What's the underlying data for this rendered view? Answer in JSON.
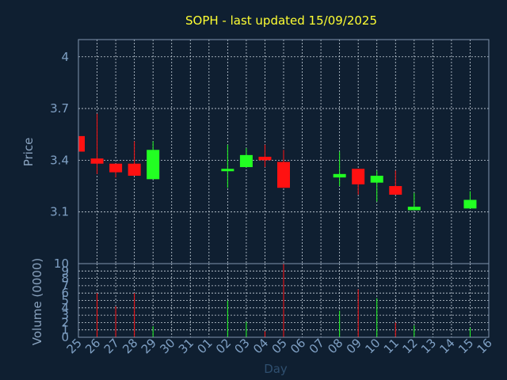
{
  "title": "SOPH - last updated 15/09/2025",
  "colors": {
    "background": "#0f1f31",
    "up": "#22ff22",
    "down": "#ff1111",
    "title": "#ffff33",
    "axis_text": "#7fa0c4"
  },
  "chart_data": [
    {
      "type": "candlestick",
      "ylabel": "Price",
      "ylim": [
        2.8,
        4.1
      ],
      "yticks": [
        4,
        3.7,
        3.4,
        3.1
      ],
      "grid": true,
      "categories": [
        "25",
        "26",
        "27",
        "28",
        "29",
        "30",
        "31",
        "01",
        "02",
        "03",
        "04",
        "05",
        "06",
        "07",
        "08",
        "09",
        "10",
        "11",
        "12",
        "13",
        "14",
        "15",
        "16"
      ],
      "candles": [
        {
          "x": "25",
          "open": 3.54,
          "close": 3.45,
          "high": 3.54,
          "low": 3.45
        },
        {
          "x": "26",
          "open": 3.41,
          "close": 3.38,
          "high": 3.67,
          "low": 3.32
        },
        {
          "x": "27",
          "open": 3.38,
          "close": 3.33,
          "high": 3.38,
          "low": 3.3
        },
        {
          "x": "28",
          "open": 3.38,
          "close": 3.31,
          "high": 3.51,
          "low": 3.31
        },
        {
          "x": "29",
          "open": 3.29,
          "close": 3.46,
          "high": 3.51,
          "low": 3.29
        },
        {
          "x": "02",
          "open": 3.34,
          "close": 3.35,
          "high": 3.49,
          "low": 3.24
        },
        {
          "x": "03",
          "open": 3.36,
          "close": 3.43,
          "high": 3.47,
          "low": 3.36
        },
        {
          "x": "04",
          "open": 3.42,
          "close": 3.4,
          "high": 3.49,
          "low": 3.36
        },
        {
          "x": "05",
          "open": 3.39,
          "close": 3.24,
          "high": 3.46,
          "low": 3.24
        },
        {
          "x": "08",
          "open": 3.3,
          "close": 3.32,
          "high": 3.45,
          "low": 3.25
        },
        {
          "x": "09",
          "open": 3.35,
          "close": 3.26,
          "high": 3.35,
          "low": 3.2
        },
        {
          "x": "10",
          "open": 3.27,
          "close": 3.31,
          "high": 3.34,
          "low": 3.16
        },
        {
          "x": "11",
          "open": 3.25,
          "close": 3.2,
          "high": 3.34,
          "low": 3.2
        },
        {
          "x": "12",
          "open": 3.11,
          "close": 3.13,
          "high": 3.21,
          "low": 3.11
        },
        {
          "x": "15",
          "open": 3.12,
          "close": 3.17,
          "high": 3.22,
          "low": 3.12
        }
      ]
    },
    {
      "type": "bar",
      "ylabel": "Volume (0000)",
      "xlabel": "Day",
      "ylim": [
        0,
        10
      ],
      "yticks": [
        10,
        9,
        8,
        7,
        6,
        5,
        4,
        3,
        2,
        1,
        0
      ],
      "volumes": [
        {
          "x": "26",
          "value": 6.0,
          "direction": "down"
        },
        {
          "x": "27",
          "value": 4.2,
          "direction": "down"
        },
        {
          "x": "28",
          "value": 6.0,
          "direction": "down"
        },
        {
          "x": "29",
          "value": 1.5,
          "direction": "up"
        },
        {
          "x": "02",
          "value": 5.0,
          "direction": "up"
        },
        {
          "x": "03",
          "value": 2.1,
          "direction": "up"
        },
        {
          "x": "04",
          "value": 0.8,
          "direction": "down"
        },
        {
          "x": "05",
          "value": 10.0,
          "direction": "down"
        },
        {
          "x": "08",
          "value": 3.6,
          "direction": "up"
        },
        {
          "x": "09",
          "value": 6.5,
          "direction": "down"
        },
        {
          "x": "10",
          "value": 5.3,
          "direction": "up"
        },
        {
          "x": "11",
          "value": 2.0,
          "direction": "down"
        },
        {
          "x": "12",
          "value": 1.6,
          "direction": "up"
        },
        {
          "x": "15",
          "value": 1.3,
          "direction": "up"
        }
      ]
    }
  ]
}
